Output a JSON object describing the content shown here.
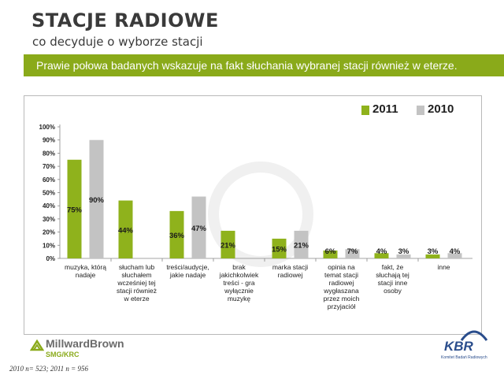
{
  "header": {
    "title": "STACJE RADIOWE",
    "subtitle": "co decyduje o wyborze stacji",
    "banner": "Prawie połowa badanych wskazuje na fakt słuchania wybranej stacji również w eterze."
  },
  "colors": {
    "banner": "#8aaa1a",
    "series_2011": "#8fb21c",
    "series_2010": "#c3c3c3"
  },
  "chart_data": {
    "type": "bar",
    "categories": [
      [
        "muzyka, którą",
        "nadaje"
      ],
      [
        "słucham lub",
        "słuchałem",
        "wcześniej tej",
        "stacji również",
        "w eterze"
      ],
      [
        "treści/audycje,",
        "jakie nadaje"
      ],
      [
        "brak",
        "jakichkolwiek",
        "treści - gra",
        "wyłącznie",
        "muzykę"
      ],
      [
        "marka stacji",
        "radiowej"
      ],
      [
        "opinia na",
        "temat stacji",
        "radiowej",
        "wygłaszana",
        "przez moich",
        "przyjaciół"
      ],
      [
        "fakt, że",
        "słuchają tej",
        "stacji inne",
        "osoby"
      ],
      [
        "inne"
      ]
    ],
    "series": [
      {
        "name": "2011",
        "values": [
          75,
          44,
          36,
          21,
          15,
          6,
          4,
          3
        ],
        "labels": [
          "75%",
          "44%",
          "36%",
          "21%",
          "15%",
          "6%",
          "4%",
          "3%"
        ]
      },
      {
        "name": "2010",
        "values": [
          90,
          null,
          47,
          null,
          21,
          7,
          3,
          4
        ],
        "labels": [
          "90%",
          "",
          "47%",
          "",
          "21%",
          "7%",
          "3%",
          "4%"
        ]
      }
    ],
    "y_ticks": [
      "0%",
      "10%",
      "20%",
      "30%",
      "40%",
      "50%",
      "60%",
      "70%",
      "80%",
      "90%",
      "100%"
    ],
    "ylim": [
      0,
      100
    ],
    "legend": "top-right"
  },
  "footer": {
    "brand": "MillwardBrown",
    "brand_sub": "SMG/KRC",
    "kbr": "KBR",
    "kbr_sub": "Komitet Badań Radiowych",
    "note": "2010  n= 523; 2011  n = 956"
  }
}
